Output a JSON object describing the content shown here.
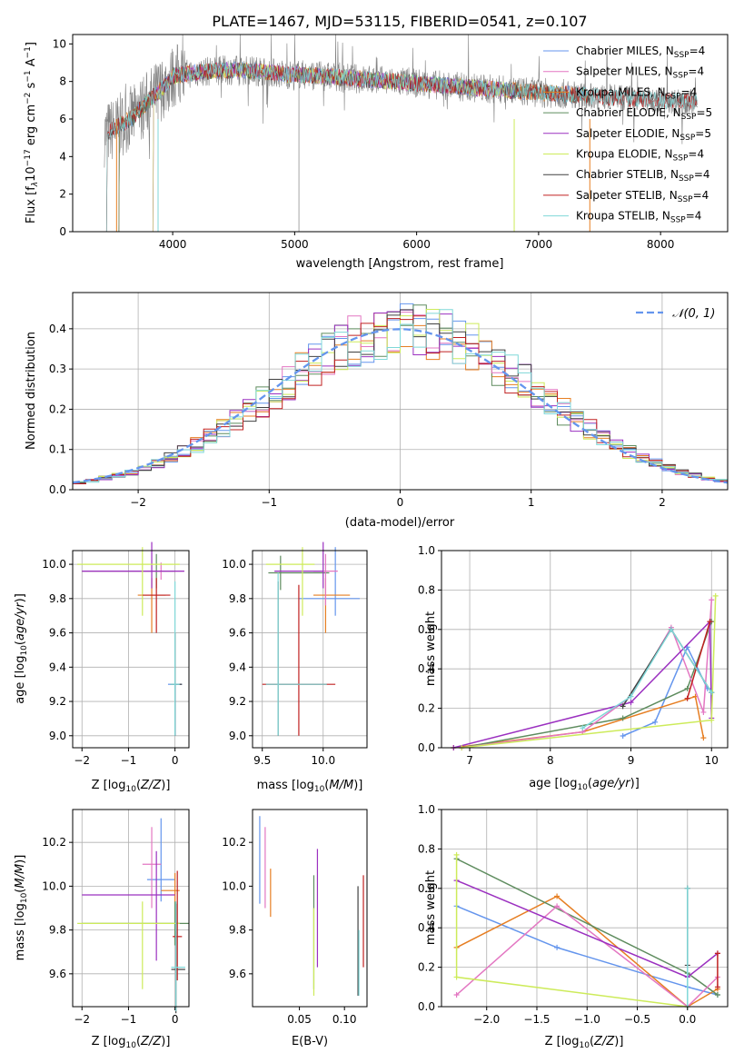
{
  "title": "PLATE=1467, MJD=53115, FIBERID=0541, z=0.107",
  "colors": {
    "chabrier_miles": "#6495ED",
    "salpeter_miles": "#E67E22",
    "kroupa_miles": "#5E8C5E",
    "chabrier_elodie": "#E377C2",
    "salpeter_elodie": "#9B30C0",
    "kroupa_elodie": "#CDEB5A",
    "chabrier_stelib": "#404040",
    "salpeter_stelib": "#C02020",
    "kroupa_stelib": "#7FD8D8",
    "data": "#808080",
    "normal": "#6495ED",
    "grid": "#b0b0b0"
  },
  "legend_spectrum": [
    {
      "name": "Chabrier MILES, N",
      "sub": "SSP",
      "suffix": "=4",
      "color": "#6495ED"
    },
    {
      "name": "Salpeter MILES, N",
      "sub": "SSP",
      "suffix": "=4",
      "color": "#E377C2"
    },
    {
      "name": "Kroupa MILES, N",
      "sub": "SSP",
      "suffix": "=4",
      "color": "#E67E22"
    },
    {
      "name": "Chabrier ELODIE, N",
      "sub": "SSP",
      "suffix": "=5",
      "color": "#5E8C5E"
    },
    {
      "name": "Salpeter ELODIE, N",
      "sub": "SSP",
      "suffix": "=5",
      "color": "#9B30C0"
    },
    {
      "name": "Kroupa ELODIE, N",
      "sub": "SSP",
      "suffix": "=4",
      "color": "#CDEB5A"
    },
    {
      "name": "Chabrier STELIB, N",
      "sub": "SSP",
      "suffix": "=4",
      "color": "#404040"
    },
    {
      "name": "Salpeter STELIB, N",
      "sub": "SSP",
      "suffix": "=4",
      "color": "#C02020"
    },
    {
      "name": "Kroupa STELIB, N",
      "sub": "SSP",
      "suffix": "=4",
      "color": "#7FD8D8"
    }
  ],
  "legend_hist": {
    "label": "𝒩(0, 1)"
  },
  "chart_data": [
    {
      "id": "spectrum",
      "type": "line",
      "xlabel": "wavelength [Angstrom, rest frame]",
      "ylabel": "Flux [f",
      "ylabel_full": "Flux [fλ10⁻¹⁷ erg cm⁻² s⁻¹ A⁻¹]",
      "xlim": [
        3180,
        8550
      ],
      "ylim": [
        0,
        10.5
      ],
      "xticks": [
        4000,
        5000,
        6000,
        7000,
        8000
      ],
      "yticks": [
        0,
        2,
        4,
        6,
        8,
        10
      ],
      "grid": false,
      "legend": "right"
    },
    {
      "id": "residuals",
      "type": "line",
      "xlabel": "(data-model)/error",
      "ylabel": "Normed distribution",
      "xlim": [
        -2.5,
        2.5
      ],
      "ylim": [
        0,
        0.49
      ],
      "xticks": [
        -2,
        -1,
        0,
        1,
        2
      ],
      "yticks": [
        0.0,
        0.1,
        0.2,
        0.3,
        0.4
      ],
      "grid": true,
      "legend": "top-right"
    },
    {
      "id": "age_z",
      "type": "scatter",
      "xlabel": "Z [log10(Z/Z⊙)]",
      "ylabel": "age  [log10(age/yr)]",
      "xlim": [
        -2.2,
        0.3
      ],
      "ylim": [
        8.93,
        10.08
      ],
      "xticks": [
        -2,
        -1,
        0
      ],
      "yticks": [
        9.0,
        9.2,
        9.4,
        9.6,
        9.8,
        10.0
      ],
      "grid": true
    },
    {
      "id": "age_mass",
      "type": "scatter",
      "xlabel": "mass [log10(M/M⊙)]",
      "xlim": [
        9.42,
        10.36
      ],
      "ylim": [
        8.93,
        10.08
      ],
      "xticks": [
        9.5,
        10.0
      ],
      "yticks": [
        9.0,
        9.2,
        9.4,
        9.6,
        9.8,
        10.0
      ],
      "grid": true
    },
    {
      "id": "mw_age",
      "type": "line",
      "xlabel": "age  [log10(age/yr)]",
      "ylabel": "mass weight",
      "xlim": [
        6.65,
        10.2
      ],
      "ylim": [
        0,
        1
      ],
      "xticks": [
        7,
        8,
        9,
        10
      ],
      "yticks": [
        0.0,
        0.2,
        0.4,
        0.6,
        0.8,
        1.0
      ],
      "grid": true
    },
    {
      "id": "mass_z",
      "type": "scatter",
      "xlabel": "Z [log10(Z/Z⊙)]",
      "ylabel": "mass [log10(M/M⊙)]",
      "xlim": [
        -2.2,
        0.3
      ],
      "ylim": [
        9.45,
        10.35
      ],
      "xticks": [
        -2,
        -1,
        0
      ],
      "yticks": [
        9.6,
        9.8,
        10.0,
        10.2
      ],
      "grid": true
    },
    {
      "id": "mass_ebv",
      "type": "scatter",
      "xlabel": "E(B-V)",
      "xlim": [
        -0.002,
        0.125
      ],
      "ylim": [
        9.45,
        10.35
      ],
      "xticks": [
        0.05,
        0.1
      ],
      "yticks": [
        9.6,
        9.8,
        10.0,
        10.2
      ],
      "grid": false
    },
    {
      "id": "mw_z",
      "type": "line",
      "xlabel": "Z [log10(Z/Z⊙)]",
      "ylabel": "mass weight",
      "xlim": [
        -2.45,
        0.4
      ],
      "ylim": [
        0,
        1
      ],
      "xticks": [
        -2.0,
        -1.5,
        -1.0,
        -0.5,
        0.0
      ],
      "yticks": [
        0.0,
        0.2,
        0.4,
        0.6,
        0.8,
        1.0
      ],
      "grid": true
    }
  ],
  "tick_labels": {
    "spectrum_x": [
      "4000",
      "5000",
      "6000",
      "7000",
      "8000"
    ],
    "spectrum_y": [
      "0",
      "2",
      "4",
      "6",
      "8",
      "10"
    ],
    "hist_x": [
      "−2",
      "−1",
      "0",
      "1",
      "2"
    ],
    "hist_y": [
      "0.0",
      "0.1",
      "0.2",
      "0.3",
      "0.4"
    ],
    "agez_x": [
      "−2",
      "−1",
      "0"
    ],
    "age_y": [
      "9.0",
      "9.2",
      "9.4",
      "9.6",
      "9.8",
      "10.0"
    ],
    "mass_x": [
      "9.5",
      "10.0"
    ],
    "mwage_x": [
      "7",
      "8",
      "9",
      "10"
    ],
    "mw_y": [
      "0.0",
      "0.2",
      "0.4",
      "0.6",
      "0.8",
      "1.0"
    ],
    "massz_y": [
      "9.6",
      "9.8",
      "10.0",
      "10.2"
    ],
    "ebv_x": [
      "0.05",
      "0.10"
    ],
    "mwz_x": [
      "−2.0",
      "−1.5",
      "−1.0",
      "−0.5",
      "0.0"
    ]
  },
  "axis_text": {
    "spec_x": "wavelength [Angstrom, rest frame]",
    "hist_x": "(data-model)/error",
    "hist_y": "Normed distribution",
    "z_x": "Z [log",
    "age_y": "age  [log",
    "mass_x": "mass [log",
    "mw_y": "mass weight",
    "ebv_x": "E(B-V)"
  }
}
